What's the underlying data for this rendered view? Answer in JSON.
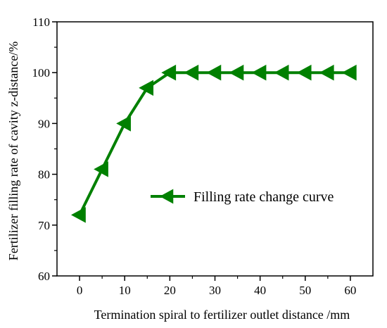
{
  "chart_data": {
    "type": "line",
    "title": "",
    "xlabel": "Termination spiral to fertilizer outlet distance /mm",
    "ylabel": "Fertilizer filling rate of cavity z-distance/%",
    "xlim": [
      -5,
      65
    ],
    "ylim": [
      60,
      110
    ],
    "xticks": [
      0,
      10,
      20,
      30,
      40,
      50,
      60
    ],
    "yticks": [
      60,
      70,
      80,
      90,
      100,
      110
    ],
    "x_minor_ticks": [
      5,
      15,
      25,
      35,
      45,
      55
    ],
    "y_minor_ticks": [
      65,
      75,
      85,
      95,
      105
    ],
    "grid": false,
    "legend_position": "right",
    "series": [
      {
        "name": "Filling rate change curve",
        "color": "#008000",
        "marker": "left-triangle",
        "x": [
          0,
          5,
          10,
          15,
          20,
          25,
          30,
          35,
          40,
          45,
          50,
          55,
          60
        ],
        "y": [
          72,
          81,
          90,
          97,
          100,
          100,
          100,
          100,
          100,
          100,
          100,
          100,
          100
        ]
      }
    ]
  }
}
